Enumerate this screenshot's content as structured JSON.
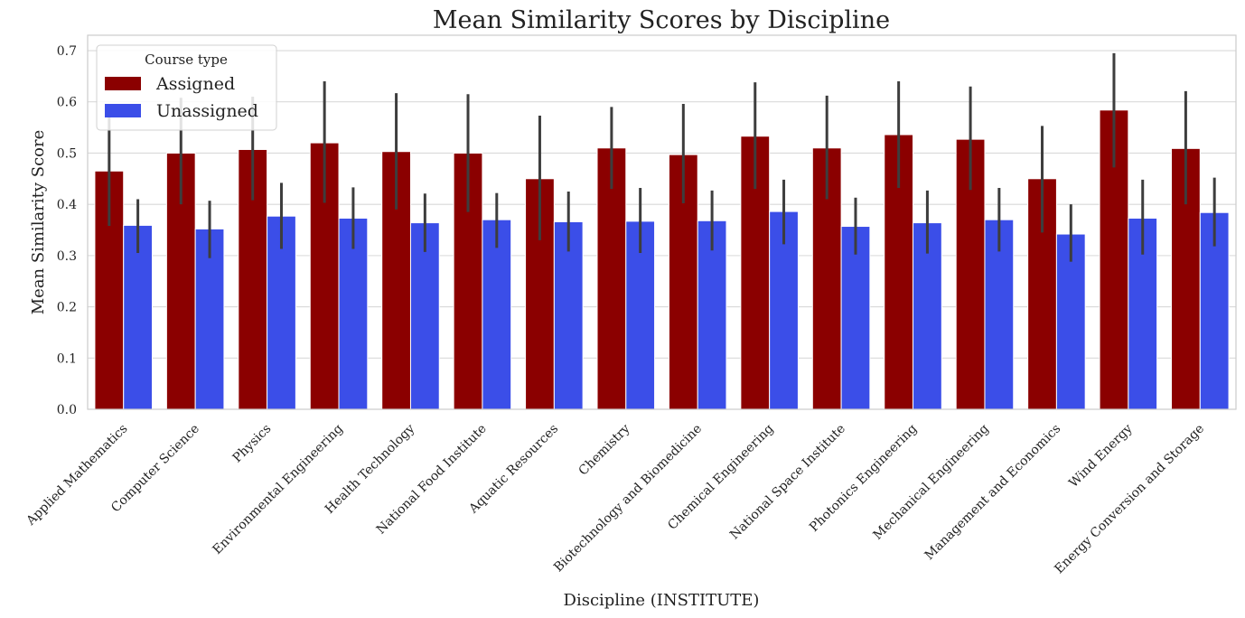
{
  "chart_data": {
    "type": "bar",
    "title": "Mean Similarity Scores by Discipline",
    "xlabel": "Discipline (INSTITUTE)",
    "ylabel": "Mean Similarity Score",
    "ylim": [
      0,
      0.73
    ],
    "yticks": [
      0.0,
      0.1,
      0.2,
      0.3,
      0.4,
      0.5,
      0.6,
      0.7
    ],
    "ytick_labels": [
      "0.0",
      "0.1",
      "0.2",
      "0.3",
      "0.4",
      "0.5",
      "0.6",
      "0.7"
    ],
    "grid": "horizontal",
    "legend": {
      "title": "Course type",
      "placement": "top-left"
    },
    "categories": [
      "Applied Mathematics",
      "Computer Science",
      "Physics",
      "Environmental Engineering",
      "Health Technology",
      "National Food Institute",
      "Aquatic Resources",
      "Chemistry",
      "Biotechnology and Biomedicine",
      "Chemical Engineering",
      "National Space Institute",
      "Photonics Engineering",
      "Mechanical Engineering",
      "Management and Economics",
      "Wind Energy",
      "Energy Conversion and Storage"
    ],
    "series": [
      {
        "name": "Assigned",
        "color": "#8b0000",
        "values": [
          0.465,
          0.5,
          0.507,
          0.52,
          0.503,
          0.5,
          0.45,
          0.51,
          0.497,
          0.533,
          0.51,
          0.536,
          0.527,
          0.45,
          0.584,
          0.509
        ],
        "ci_low": [
          0.358,
          0.4,
          0.408,
          0.403,
          0.39,
          0.385,
          0.33,
          0.43,
          0.402,
          0.43,
          0.41,
          0.432,
          0.428,
          0.345,
          0.472,
          0.4
        ],
        "ci_high": [
          0.58,
          0.608,
          0.61,
          0.64,
          0.617,
          0.615,
          0.573,
          0.59,
          0.596,
          0.638,
          0.612,
          0.64,
          0.63,
          0.553,
          0.695,
          0.621
        ]
      },
      {
        "name": "Unassigned",
        "color": "#3b4ee8",
        "values": [
          0.359,
          0.352,
          0.377,
          0.373,
          0.364,
          0.37,
          0.366,
          0.367,
          0.368,
          0.386,
          0.357,
          0.364,
          0.37,
          0.342,
          0.373,
          0.384
        ],
        "ci_low": [
          0.305,
          0.295,
          0.313,
          0.313,
          0.307,
          0.315,
          0.308,
          0.305,
          0.31,
          0.322,
          0.302,
          0.304,
          0.308,
          0.288,
          0.302,
          0.318
        ],
        "ci_high": [
          0.41,
          0.407,
          0.442,
          0.433,
          0.421,
          0.422,
          0.425,
          0.432,
          0.427,
          0.448,
          0.413,
          0.427,
          0.432,
          0.4,
          0.448,
          0.452
        ]
      }
    ]
  }
}
